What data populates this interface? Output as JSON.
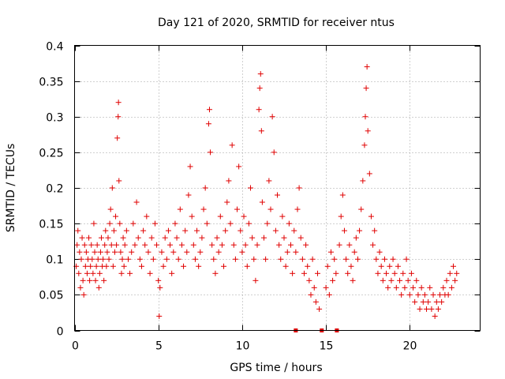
{
  "chart_data": {
    "type": "scatter",
    "title": "Day 121 of 2020, SRMTID for receiver ntus",
    "xlabel": "GPS time / hours",
    "ylabel": "SRMTID / TECUs",
    "xlim": [
      0,
      24.2
    ],
    "ylim": [
      0,
      0.4
    ],
    "xticks": [
      0,
      5,
      10,
      15,
      20
    ],
    "xtick_labels": [
      "0",
      "5",
      "10",
      "15",
      "20"
    ],
    "yticks": [
      0,
      0.05,
      0.1,
      0.15,
      0.2,
      0.25,
      0.3,
      0.35,
      0.4
    ],
    "ytick_labels": [
      "0",
      "0.05",
      "0.1",
      "0.15",
      "0.2",
      "0.25",
      "0.3",
      "0.35",
      "0.4"
    ],
    "grid": true,
    "marker": "+",
    "color": "#e00000",
    "series": [
      {
        "name": "SRMTID",
        "points": [
          [
            0.1,
            0.09
          ],
          [
            0.15,
            0.12
          ],
          [
            0.2,
            0.14
          ],
          [
            0.25,
            0.08
          ],
          [
            0.3,
            0.11
          ],
          [
            0.35,
            0.06
          ],
          [
            0.4,
            0.1
          ],
          [
            0.45,
            0.13
          ],
          [
            0.5,
            0.07
          ],
          [
            0.55,
            0.05
          ],
          [
            0.6,
            0.12
          ],
          [
            0.65,
            0.09
          ],
          [
            0.7,
            0.11
          ],
          [
            0.75,
            0.08
          ],
          [
            0.8,
            0.1
          ],
          [
            0.85,
            0.13
          ],
          [
            0.9,
            0.07
          ],
          [
            0.95,
            0.09
          ],
          [
            1.0,
            0.12
          ],
          [
            1.05,
            0.1
          ],
          [
            1.1,
            0.08
          ],
          [
            1.15,
            0.15
          ],
          [
            1.2,
            0.11
          ],
          [
            1.25,
            0.07
          ],
          [
            1.3,
            0.09
          ],
          [
            1.35,
            0.12
          ],
          [
            1.4,
            0.1
          ],
          [
            1.45,
            0.06
          ],
          [
            1.5,
            0.08
          ],
          [
            1.55,
            0.11
          ],
          [
            1.6,
            0.13
          ],
          [
            1.65,
            0.09
          ],
          [
            1.7,
            0.1
          ],
          [
            1.75,
            0.07
          ],
          [
            1.8,
            0.12
          ],
          [
            1.85,
            0.14
          ],
          [
            1.9,
            0.09
          ],
          [
            1.95,
            0.11
          ],
          [
            2.0,
            0.13
          ],
          [
            2.05,
            0.1
          ],
          [
            2.1,
            0.15
          ],
          [
            2.15,
            0.17
          ],
          [
            2.2,
            0.12
          ],
          [
            2.25,
            0.2
          ],
          [
            2.3,
            0.09
          ],
          [
            2.35,
            0.14
          ],
          [
            2.4,
            0.11
          ],
          [
            2.45,
            0.16
          ],
          [
            2.5,
            0.12
          ],
          [
            2.55,
            0.27
          ],
          [
            2.6,
            0.3
          ],
          [
            2.62,
            0.32
          ],
          [
            2.65,
            0.21
          ],
          [
            2.7,
            0.15
          ],
          [
            2.75,
            0.11
          ],
          [
            2.8,
            0.08
          ],
          [
            2.85,
            0.1
          ],
          [
            2.9,
            0.13
          ],
          [
            2.95,
            0.09
          ],
          [
            3.0,
            0.12
          ],
          [
            3.1,
            0.14
          ],
          [
            3.2,
            0.1
          ],
          [
            3.3,
            0.08
          ],
          [
            3.4,
            0.11
          ],
          [
            3.5,
            0.15
          ],
          [
            3.6,
            0.12
          ],
          [
            3.7,
            0.18
          ],
          [
            3.8,
            0.13
          ],
          [
            3.9,
            0.1
          ],
          [
            4.0,
            0.09
          ],
          [
            4.1,
            0.14
          ],
          [
            4.2,
            0.12
          ],
          [
            4.3,
            0.16
          ],
          [
            4.4,
            0.11
          ],
          [
            4.5,
            0.08
          ],
          [
            4.6,
            0.13
          ],
          [
            4.7,
            0.1
          ],
          [
            4.8,
            0.15
          ],
          [
            4.9,
            0.12
          ],
          [
            5.0,
            0.07
          ],
          [
            5.05,
            0.02
          ],
          [
            5.1,
            0.06
          ],
          [
            5.2,
            0.11
          ],
          [
            5.3,
            0.09
          ],
          [
            5.4,
            0.13
          ],
          [
            5.5,
            0.1
          ],
          [
            5.6,
            0.14
          ],
          [
            5.7,
            0.12
          ],
          [
            5.8,
            0.08
          ],
          [
            5.9,
            0.11
          ],
          [
            6.0,
            0.15
          ],
          [
            6.1,
            0.13
          ],
          [
            6.2,
            0.1
          ],
          [
            6.3,
            0.17
          ],
          [
            6.4,
            0.12
          ],
          [
            6.5,
            0.09
          ],
          [
            6.6,
            0.14
          ],
          [
            6.7,
            0.11
          ],
          [
            6.8,
            0.19
          ],
          [
            6.9,
            0.23
          ],
          [
            7.0,
            0.16
          ],
          [
            7.1,
            0.12
          ],
          [
            7.2,
            0.1
          ],
          [
            7.3,
            0.14
          ],
          [
            7.4,
            0.09
          ],
          [
            7.5,
            0.11
          ],
          [
            7.6,
            0.13
          ],
          [
            7.7,
            0.17
          ],
          [
            7.8,
            0.2
          ],
          [
            7.9,
            0.15
          ],
          [
            8.0,
            0.29
          ],
          [
            8.05,
            0.31
          ],
          [
            8.1,
            0.25
          ],
          [
            8.2,
            0.12
          ],
          [
            8.3,
            0.1
          ],
          [
            8.4,
            0.08
          ],
          [
            8.5,
            0.13
          ],
          [
            8.6,
            0.11
          ],
          [
            8.7,
            0.16
          ],
          [
            8.8,
            0.12
          ],
          [
            8.9,
            0.09
          ],
          [
            9.0,
            0.14
          ],
          [
            9.1,
            0.18
          ],
          [
            9.2,
            0.21
          ],
          [
            9.3,
            0.15
          ],
          [
            9.4,
            0.26
          ],
          [
            9.5,
            0.12
          ],
          [
            9.6,
            0.1
          ],
          [
            9.7,
            0.17
          ],
          [
            9.8,
            0.23
          ],
          [
            9.9,
            0.14
          ],
          [
            10.0,
            0.11
          ],
          [
            10.1,
            0.16
          ],
          [
            10.2,
            0.12
          ],
          [
            10.3,
            0.09
          ],
          [
            10.4,
            0.15
          ],
          [
            10.5,
            0.2
          ],
          [
            10.6,
            0.13
          ],
          [
            10.7,
            0.1
          ],
          [
            10.8,
            0.07
          ],
          [
            10.9,
            0.12
          ],
          [
            11.0,
            0.31
          ],
          [
            11.05,
            0.34
          ],
          [
            11.1,
            0.36
          ],
          [
            11.15,
            0.28
          ],
          [
            11.2,
            0.18
          ],
          [
            11.3,
            0.13
          ],
          [
            11.4,
            0.1
          ],
          [
            11.5,
            0.15
          ],
          [
            11.6,
            0.21
          ],
          [
            11.7,
            0.17
          ],
          [
            11.8,
            0.3
          ],
          [
            11.9,
            0.25
          ],
          [
            12.0,
            0.14
          ],
          [
            12.1,
            0.19
          ],
          [
            12.2,
            0.12
          ],
          [
            12.3,
            0.1
          ],
          [
            12.4,
            0.16
          ],
          [
            12.5,
            0.13
          ],
          [
            12.6,
            0.09
          ],
          [
            12.7,
            0.11
          ],
          [
            12.8,
            0.15
          ],
          [
            12.9,
            0.12
          ],
          [
            13.0,
            0.08
          ],
          [
            13.1,
            0.14
          ],
          [
            13.2,
            0.11
          ],
          [
            13.3,
            0.17
          ],
          [
            13.4,
            0.2
          ],
          [
            13.5,
            0.13
          ],
          [
            13.6,
            0.1
          ],
          [
            13.7,
            0.08
          ],
          [
            13.8,
            0.12
          ],
          [
            13.9,
            0.09
          ],
          [
            14.0,
            0.07
          ],
          [
            14.1,
            0.05
          ],
          [
            14.2,
            0.1
          ],
          [
            14.3,
            0.06
          ],
          [
            14.4,
            0.04
          ],
          [
            14.5,
            0.08
          ],
          [
            14.6,
            0.03
          ],
          [
            15.0,
            0.06
          ],
          [
            15.1,
            0.09
          ],
          [
            15.2,
            0.05
          ],
          [
            15.3,
            0.11
          ],
          [
            15.4,
            0.07
          ],
          [
            15.5,
            0.1
          ],
          [
            15.6,
            0.08
          ],
          [
            15.8,
            0.12
          ],
          [
            15.9,
            0.16
          ],
          [
            16.0,
            0.19
          ],
          [
            16.1,
            0.14
          ],
          [
            16.2,
            0.1
          ],
          [
            16.3,
            0.08
          ],
          [
            16.4,
            0.12
          ],
          [
            16.5,
            0.09
          ],
          [
            16.6,
            0.07
          ],
          [
            16.7,
            0.11
          ],
          [
            16.8,
            0.13
          ],
          [
            16.9,
            0.1
          ],
          [
            17.0,
            0.14
          ],
          [
            17.1,
            0.17
          ],
          [
            17.2,
            0.21
          ],
          [
            17.3,
            0.26
          ],
          [
            17.35,
            0.3
          ],
          [
            17.4,
            0.34
          ],
          [
            17.45,
            0.37
          ],
          [
            17.5,
            0.28
          ],
          [
            17.6,
            0.22
          ],
          [
            17.7,
            0.16
          ],
          [
            17.8,
            0.12
          ],
          [
            17.9,
            0.14
          ],
          [
            18.0,
            0.1
          ],
          [
            18.1,
            0.08
          ],
          [
            18.2,
            0.11
          ],
          [
            18.3,
            0.09
          ],
          [
            18.4,
            0.07
          ],
          [
            18.5,
            0.1
          ],
          [
            18.6,
            0.08
          ],
          [
            18.7,
            0.06
          ],
          [
            18.8,
            0.09
          ],
          [
            18.9,
            0.07
          ],
          [
            19.0,
            0.1
          ],
          [
            19.1,
            0.08
          ],
          [
            19.2,
            0.06
          ],
          [
            19.3,
            0.09
          ],
          [
            19.4,
            0.07
          ],
          [
            19.5,
            0.05
          ],
          [
            19.6,
            0.08
          ],
          [
            19.7,
            0.06
          ],
          [
            19.8,
            0.1
          ],
          [
            19.9,
            0.07
          ],
          [
            20.0,
            0.05
          ],
          [
            20.1,
            0.08
          ],
          [
            20.2,
            0.06
          ],
          [
            20.3,
            0.04
          ],
          [
            20.4,
            0.07
          ],
          [
            20.5,
            0.05
          ],
          [
            20.6,
            0.03
          ],
          [
            20.7,
            0.06
          ],
          [
            20.8,
            0.04
          ],
          [
            20.9,
            0.05
          ],
          [
            21.0,
            0.03
          ],
          [
            21.1,
            0.04
          ],
          [
            21.2,
            0.06
          ],
          [
            21.3,
            0.03
          ],
          [
            21.4,
            0.05
          ],
          [
            21.5,
            0.02
          ],
          [
            21.6,
            0.04
          ],
          [
            21.7,
            0.03
          ],
          [
            21.8,
            0.05
          ],
          [
            21.9,
            0.04
          ],
          [
            22.0,
            0.06
          ],
          [
            22.1,
            0.05
          ],
          [
            22.2,
            0.07
          ],
          [
            22.3,
            0.05
          ],
          [
            22.4,
            0.08
          ],
          [
            22.5,
            0.06
          ],
          [
            22.6,
            0.09
          ],
          [
            22.7,
            0.07
          ],
          [
            22.8,
            0.08
          ]
        ]
      }
    ],
    "gap_markers": [
      13.2,
      14.75,
      15.65
    ]
  }
}
